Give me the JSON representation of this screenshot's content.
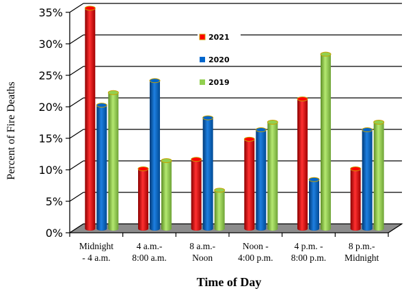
{
  "chart_data": {
    "type": "bar",
    "title": "",
    "xlabel": "Time of Day",
    "ylabel": "Percent of Fire Deaths",
    "ylim": [
      0,
      35
    ],
    "ytick_step": 5,
    "ytick_suffix": "%",
    "grid": "horizontal",
    "legend_position": "top-center",
    "categories": [
      [
        "Midnight",
        "- 4 a.m."
      ],
      [
        "4 a.m.-",
        "8:00 a.m."
      ],
      [
        "8 a.m.-",
        "Noon"
      ],
      [
        "Noon -",
        "4:00 p.m."
      ],
      [
        "4 p.m. -",
        "8:00 p.m."
      ],
      [
        "8 p.m.-",
        "Midnight"
      ]
    ],
    "series": [
      {
        "name": "2021",
        "color": "#ff0000",
        "values": [
          35.0,
          9.5,
          11.0,
          14.2,
          20.6,
          9.5
        ]
      },
      {
        "name": "2020",
        "color": "#0066cc",
        "values": [
          19.6,
          23.5,
          17.6,
          15.7,
          7.8,
          15.7
        ]
      },
      {
        "name": "2019",
        "color": "#92d050",
        "values": [
          21.6,
          10.8,
          6.1,
          16.9,
          27.7,
          16.9
        ]
      }
    ]
  }
}
